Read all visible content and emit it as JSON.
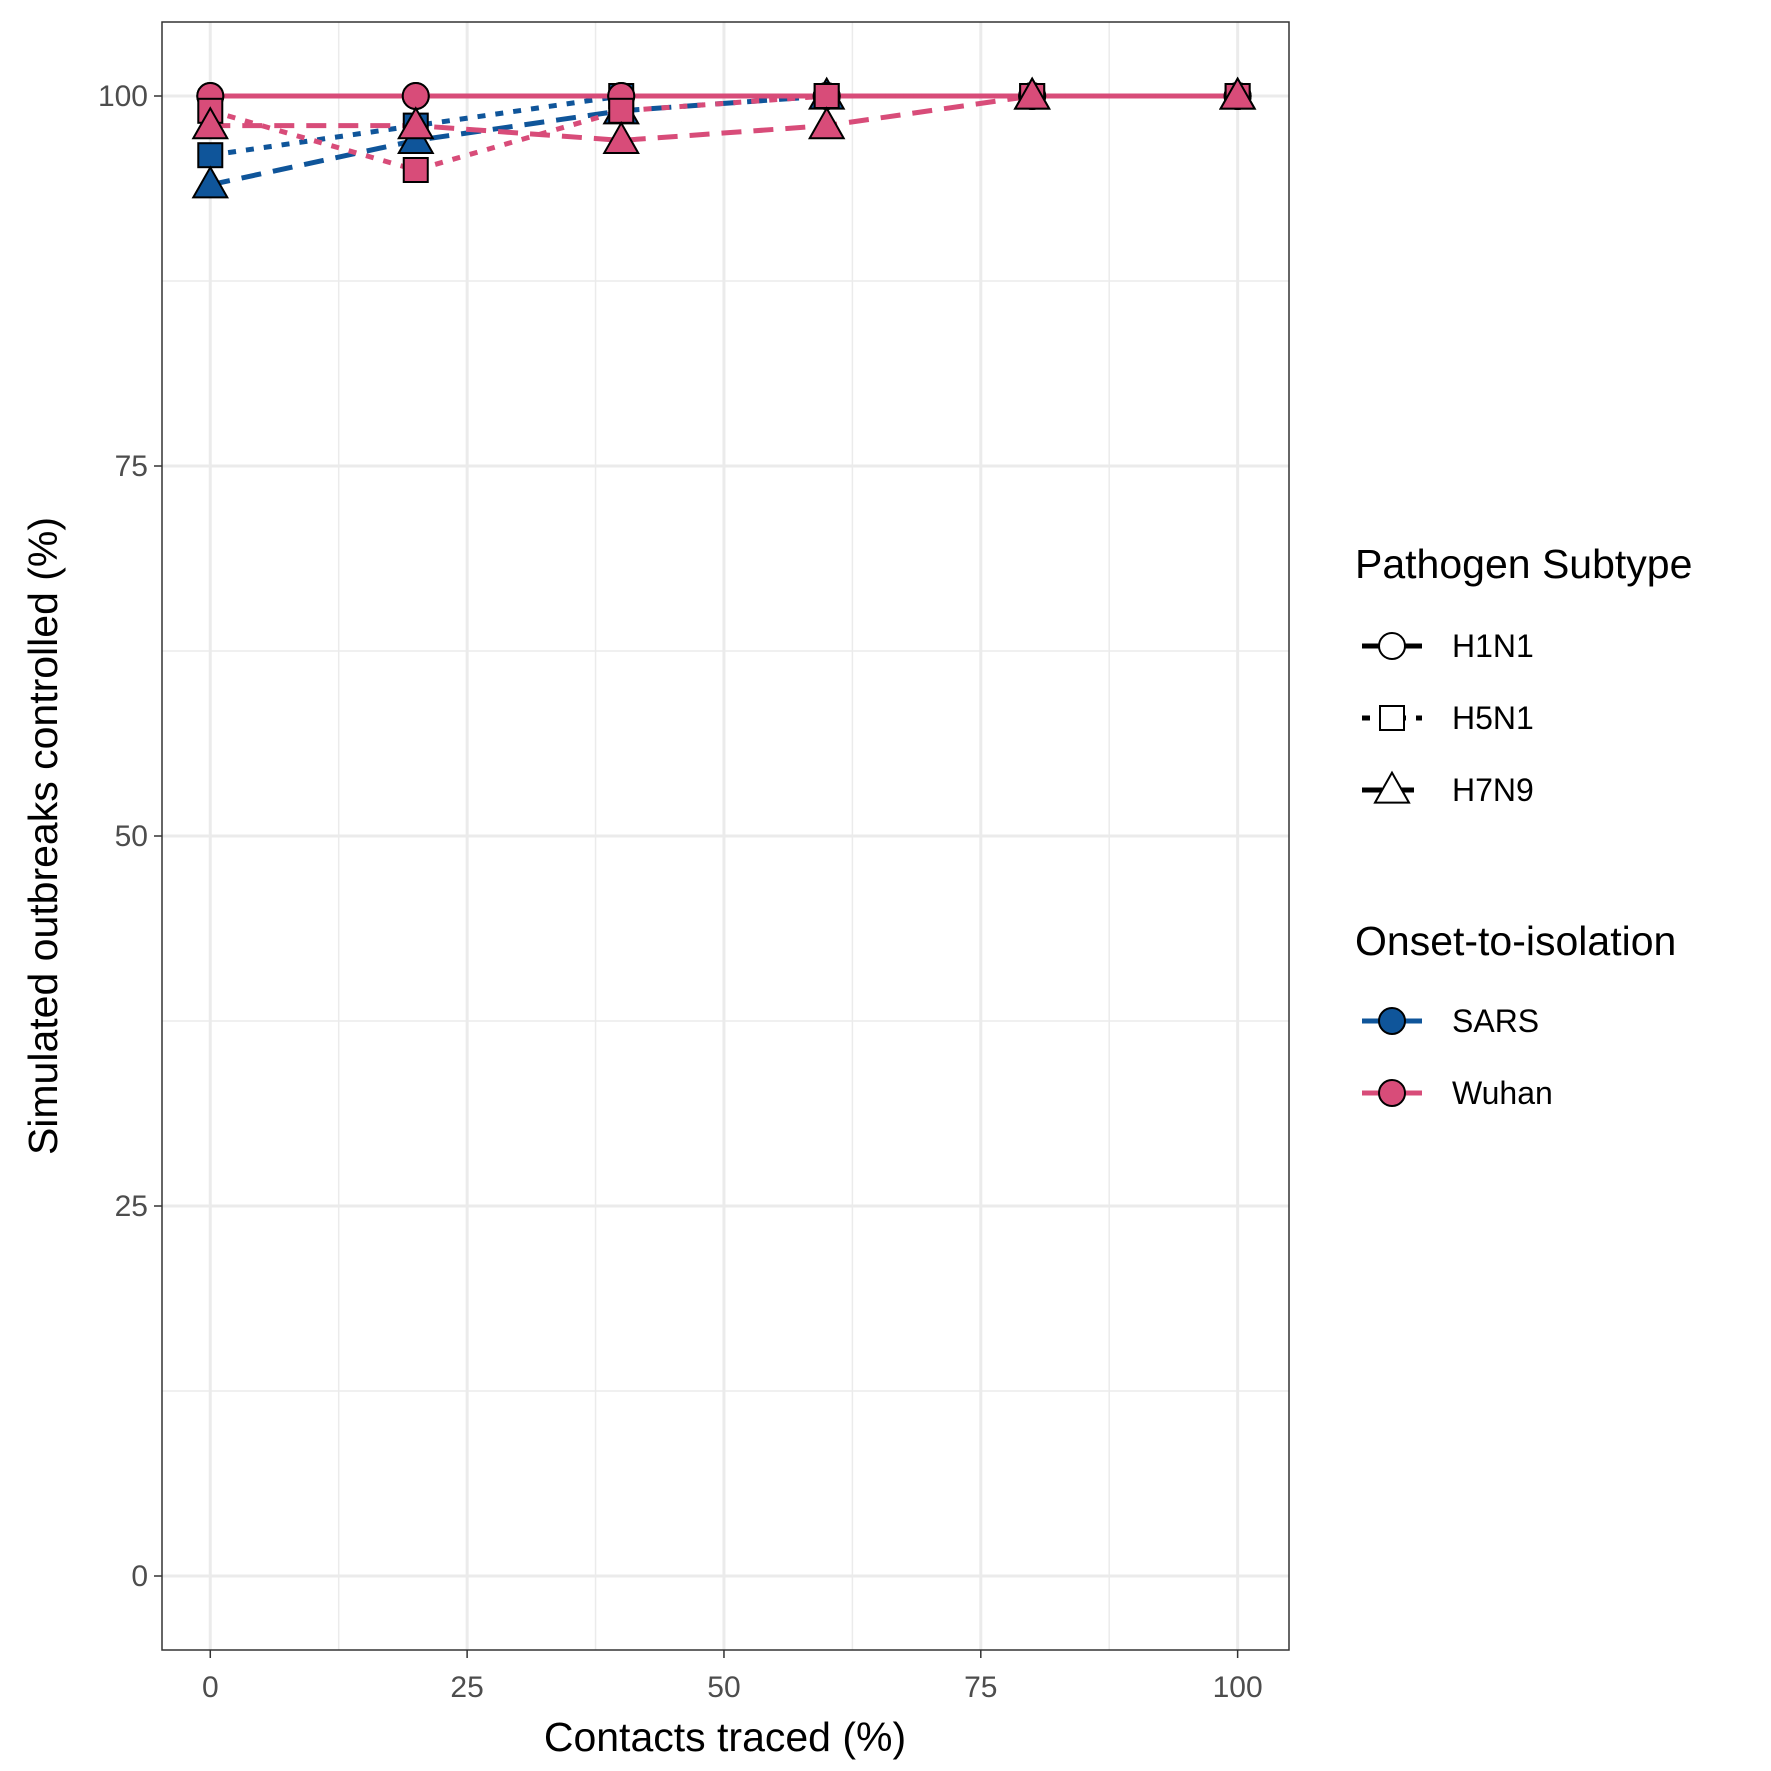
{
  "chart_data": {
    "type": "line",
    "xlabel": "Contacts traced (%)",
    "ylabel": "Simulated outbreaks controlled (%)",
    "xlim": [
      -4.7,
      105
    ],
    "ylim": [
      -5,
      105
    ],
    "xticks": [
      0,
      25,
      50,
      75,
      100
    ],
    "xtick_labels": [
      "0",
      "25",
      "50",
      "75",
      "100"
    ],
    "yticks": [
      0,
      25,
      50,
      75,
      100
    ],
    "ytick_labels": [
      "0",
      "25",
      "50",
      "75",
      "100"
    ],
    "grid": true,
    "legend_position": "right",
    "legends": [
      {
        "title": "Pathogen Subtype",
        "entries": [
          {
            "label": "H1N1",
            "shape": "circle",
            "dash": "solid"
          },
          {
            "label": "H5N1",
            "shape": "square",
            "dash": "dotted"
          },
          {
            "label": "H7N9",
            "shape": "triangle",
            "dash": "dashed"
          }
        ]
      },
      {
        "title": "Onset-to-isolation",
        "entries": [
          {
            "label": "SARS",
            "color": "#0F559A"
          },
          {
            "label": "Wuhan",
            "color": "#D84C79"
          }
        ]
      }
    ],
    "x": [
      0,
      20,
      40,
      60,
      80,
      100
    ],
    "series": [
      {
        "subtype": "H1N1",
        "isolation": "SARS",
        "values": [
          100,
          100,
          100,
          100,
          100,
          100
        ]
      },
      {
        "subtype": "H5N1",
        "isolation": "SARS",
        "values": [
          96,
          98,
          100,
          100,
          100,
          100
        ]
      },
      {
        "subtype": "H7N9",
        "isolation": "SARS",
        "values": [
          94,
          97,
          99,
          100,
          100,
          100
        ]
      },
      {
        "subtype": "H1N1",
        "isolation": "Wuhan",
        "values": [
          100,
          100,
          100,
          100,
          100,
          100
        ]
      },
      {
        "subtype": "H5N1",
        "isolation": "Wuhan",
        "values": [
          99,
          95,
          99,
          100,
          100,
          100
        ]
      },
      {
        "subtype": "H7N9",
        "isolation": "Wuhan",
        "values": [
          98,
          98,
          97,
          98,
          100,
          100
        ]
      }
    ]
  }
}
